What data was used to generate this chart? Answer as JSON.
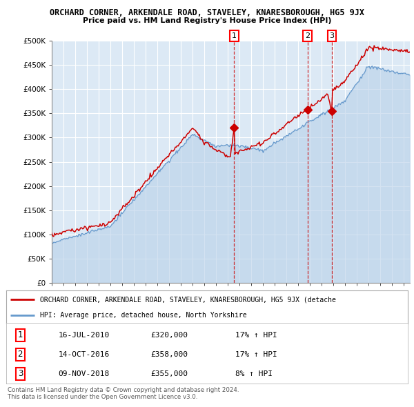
{
  "title": "ORCHARD CORNER, ARKENDALE ROAD, STAVELEY, KNARESBOROUGH, HG5 9JX",
  "subtitle": "Price paid vs. HM Land Registry's House Price Index (HPI)",
  "background_color": "#ffffff",
  "plot_bg": "#dce9f5",
  "hpi_color": "#6699cc",
  "hpi_fill": "#b8d0e8",
  "price_color": "#cc0000",
  "ylim": [
    0,
    500000
  ],
  "yticks": [
    0,
    50000,
    100000,
    150000,
    200000,
    250000,
    300000,
    350000,
    400000,
    450000,
    500000
  ],
  "ytick_labels": [
    "£0",
    "£50K",
    "£100K",
    "£150K",
    "£200K",
    "£250K",
    "£300K",
    "£350K",
    "£400K",
    "£450K",
    "£500K"
  ],
  "xlim_start": 1995.0,
  "xlim_end": 2025.5,
  "transactions": [
    {
      "num": 1,
      "date": "16-JUL-2010",
      "price": 320000,
      "hpi_pct": "17%",
      "hpi_dir": "↑",
      "x_year": 2010.54,
      "y_val": 320000
    },
    {
      "num": 2,
      "date": "14-OCT-2016",
      "price": 358000,
      "hpi_pct": "17%",
      "hpi_dir": "↑",
      "x_year": 2016.79,
      "y_val": 358000
    },
    {
      "num": 3,
      "date": "09-NOV-2018",
      "price": 355000,
      "hpi_pct": "8%",
      "hpi_dir": "↑",
      "x_year": 2018.86,
      "y_val": 355000
    }
  ],
  "legend_line1": "ORCHARD CORNER, ARKENDALE ROAD, STAVELEY, KNARESBOROUGH, HG5 9JX (detache",
  "legend_line2": "HPI: Average price, detached house, North Yorkshire",
  "footer1": "Contains HM Land Registry data © Crown copyright and database right 2024.",
  "footer2": "This data is licensed under the Open Government Licence v3.0."
}
